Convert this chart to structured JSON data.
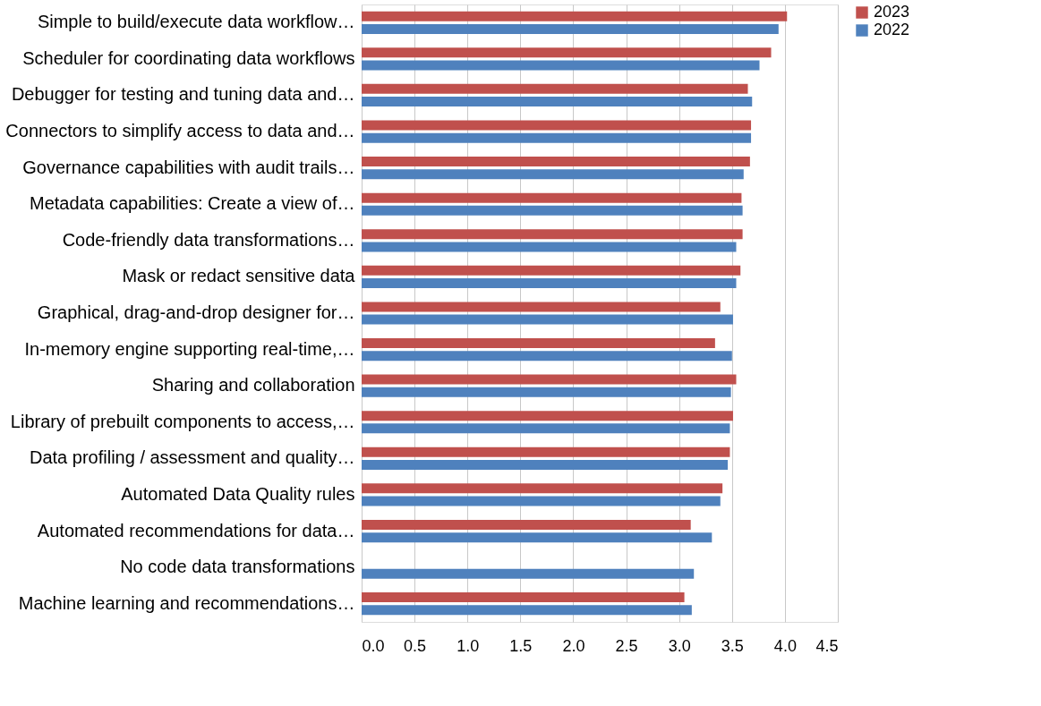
{
  "chart_data": {
    "type": "bar",
    "orientation": "horizontal",
    "categories": [
      "Simple to build/execute data workflow…",
      "Scheduler for coordinating data workflows",
      "Debugger for testing and tuning data and…",
      "Connectors to simplify access to data and…",
      "Governance capabilities with audit trails…",
      "Metadata capabilities: Create a view of…",
      "Code-friendly data transformations…",
      "Mask or redact sensitive data",
      "Graphical, drag-and-drop designer for…",
      "In-memory engine supporting real-time,…",
      "Sharing and collaboration",
      "Library of prebuilt components to access,…",
      "Data profiling / assessment and quality…",
      "Automated Data Quality rules",
      "Automated recommendations for data…",
      "No code data transformations",
      "Machine learning and recommendations…"
    ],
    "series": [
      {
        "name": "2023",
        "color": "#c0504d",
        "values": [
          4.02,
          3.87,
          3.65,
          3.68,
          3.67,
          3.59,
          3.6,
          3.58,
          3.39,
          3.34,
          3.54,
          3.51,
          3.48,
          3.41,
          3.11,
          null,
          3.05
        ]
      },
      {
        "name": "2022",
        "color": "#4f81bd",
        "values": [
          3.94,
          3.76,
          3.69,
          3.68,
          3.61,
          3.6,
          3.54,
          3.54,
          3.51,
          3.5,
          3.49,
          3.48,
          3.46,
          3.39,
          3.31,
          3.14,
          3.12
        ]
      }
    ],
    "xlim": [
      0,
      4.5
    ],
    "xticks": [
      {
        "value": 0,
        "label": "0.0"
      },
      {
        "value": 0.5,
        "label": "0.5"
      },
      {
        "value": 1,
        "label": "1.0"
      },
      {
        "value": 1.5,
        "label": "1.5"
      },
      {
        "value": 2,
        "label": "2.0"
      },
      {
        "value": 2.5,
        "label": "2.5"
      },
      {
        "value": 3,
        "label": "3.0"
      },
      {
        "value": 3.5,
        "label": "3.5"
      },
      {
        "value": 4,
        "label": "4.0"
      },
      {
        "value": 4.5,
        "label": "4.5"
      }
    ],
    "grid": "x",
    "legend": "right"
  }
}
